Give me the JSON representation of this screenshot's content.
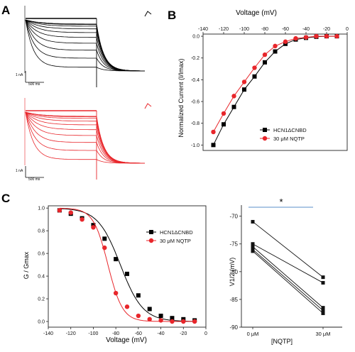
{
  "panels": {
    "a": "A",
    "b": "B",
    "c": "C"
  },
  "traces": {
    "scale_time_top": "500 ms",
    "scale_time_bottom": "500 ms",
    "scale_current_top": "1 nA",
    "scale_current_bottom": "1 nA",
    "color_control": "#000000",
    "color_drug": "#e8262b"
  },
  "chart_data": [
    {
      "type": "line",
      "panel": "B",
      "xlabel": "Voltage (mV)",
      "ylabel": "Normalized Current (I/Imax)",
      "xlim": [
        -140,
        0
      ],
      "ylim": [
        -1.05,
        0.02
      ],
      "x_ticks": [
        "-140",
        "-120",
        "-100",
        "-80",
        "-60",
        "-40",
        "-20",
        "0"
      ],
      "y_ticks": [
        "0.0",
        "-0.2",
        "-0.4",
        "-0.6",
        "-0.8",
        "-1.0"
      ],
      "x_tick_values": [
        -140,
        -120,
        -100,
        -80,
        -60,
        -40,
        -20,
        0
      ],
      "y_tick_values": [
        0,
        -0.2,
        -0.4,
        -0.6,
        -0.8,
        -1.0
      ],
      "legend_position": "bottom-right",
      "series": [
        {
          "name": "HCN1ΔCNBD",
          "color": "#000000",
          "marker": "square",
          "x": [
            -130,
            -120,
            -110,
            -100,
            -90,
            -80,
            -70,
            -60,
            -50,
            -40,
            -30,
            -20,
            -10
          ],
          "y": [
            -1.0,
            -0.81,
            -0.65,
            -0.49,
            -0.37,
            -0.24,
            -0.14,
            -0.07,
            -0.03,
            -0.015,
            -0.005,
            0.0,
            0.0
          ]
        },
        {
          "name": "30 μM NQTP",
          "color": "#e8262b",
          "marker": "circle",
          "x": [
            -130,
            -120,
            -110,
            -100,
            -90,
            -80,
            -70,
            -60,
            -50,
            -40,
            -30,
            -20,
            -10
          ],
          "y": [
            -0.88,
            -0.71,
            -0.55,
            -0.42,
            -0.29,
            -0.17,
            -0.09,
            -0.05,
            -0.02,
            -0.01,
            0.0,
            0.0,
            0.0
          ]
        }
      ]
    },
    {
      "type": "scatter",
      "panel": "C-left",
      "xlabel": "Voltage (mV)",
      "ylabel": "G / Gmax",
      "xlim": [
        -140,
        0
      ],
      "ylim": [
        -0.05,
        1.02
      ],
      "x_ticks": [
        "-140",
        "-120",
        "-100",
        "-80",
        "-60",
        "-40",
        "-20",
        "0"
      ],
      "y_ticks": [
        "0.0",
        "0.2",
        "0.4",
        "0.6",
        "0.8",
        "1.0"
      ],
      "x_tick_values": [
        -140,
        -120,
        -100,
        -80,
        -60,
        -40,
        -20,
        0
      ],
      "y_tick_values": [
        0,
        0.2,
        0.4,
        0.6,
        0.8,
        1.0
      ],
      "legend_position": "top-right",
      "series": [
        {
          "name": "HCN1ΔCNBD",
          "color": "#000000",
          "marker": "square",
          "v_half": -76,
          "slope": 10,
          "x": [
            -130,
            -120,
            -110,
            -100,
            -90,
            -80,
            -70,
            -60,
            -50,
            -40,
            -30,
            -20,
            -10
          ],
          "y": [
            0.98,
            0.95,
            0.91,
            0.85,
            0.73,
            0.55,
            0.42,
            0.23,
            0.11,
            0.05,
            0.03,
            0.02,
            0.01
          ]
        },
        {
          "name": "30 μM NQTP",
          "color": "#e8262b",
          "marker": "circle",
          "v_half": -87,
          "slope": 6.5,
          "x": [
            -130,
            -120,
            -110,
            -100,
            -90,
            -80,
            -70,
            -60,
            -50,
            -40,
            -30,
            -20,
            -10
          ],
          "y": [
            0.98,
            0.96,
            0.9,
            0.83,
            0.65,
            0.25,
            0.13,
            0.05,
            0.02,
            0.01,
            0.0,
            0.0,
            0.0
          ]
        }
      ]
    },
    {
      "type": "line",
      "panel": "C-right",
      "xlabel": "[NQTP]",
      "ylabel": "V1/2 (mV)",
      "categories": [
        "0 μM",
        "30 μM"
      ],
      "ylim": [
        -90,
        -68
      ],
      "y_ticks": [
        "-70",
        "-75",
        "-80",
        "-85",
        "-90"
      ],
      "y_tick_values": [
        -70,
        -75,
        -80,
        -85,
        -90
      ],
      "significance": "*",
      "significance_color": "#5b8fc9",
      "pairs": [
        [
          -71,
          -81
        ],
        [
          -75,
          -82
        ],
        [
          -75.5,
          -86.5
        ],
        [
          -76,
          -87
        ],
        [
          -76.3,
          -87.5
        ]
      ]
    }
  ]
}
